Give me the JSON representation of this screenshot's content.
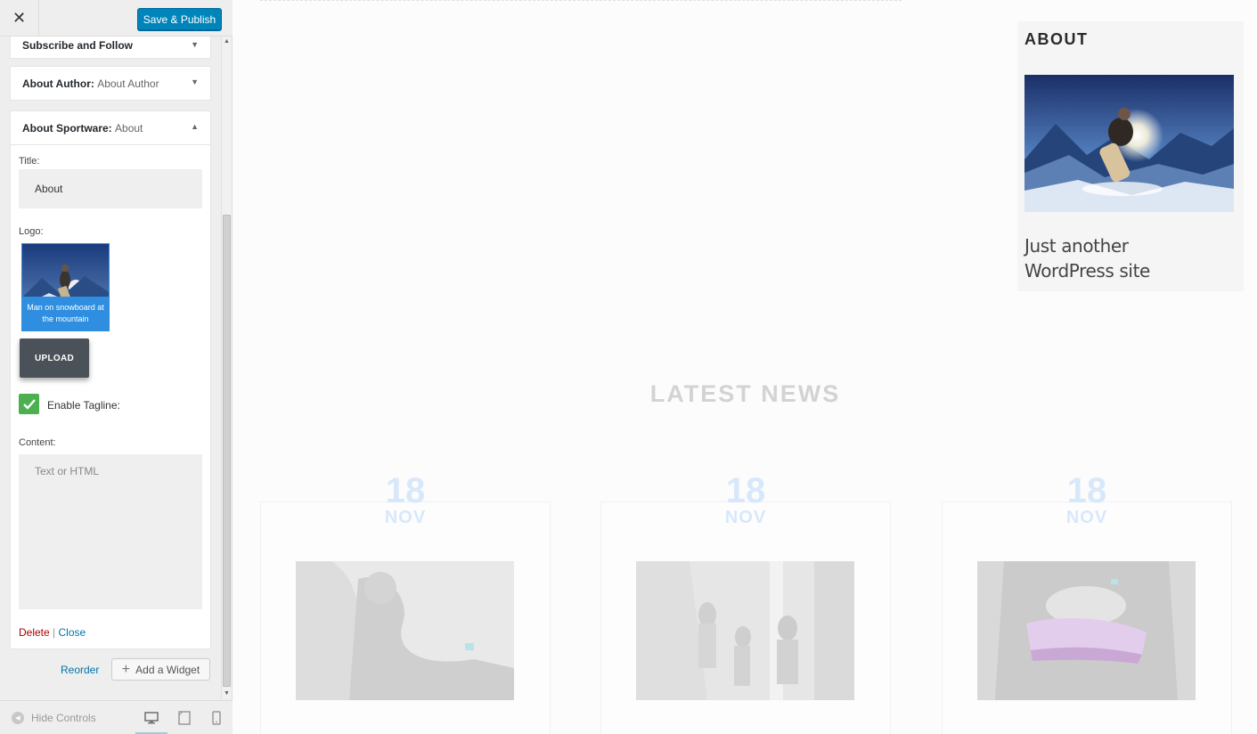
{
  "header": {
    "close_icon": "close-icon",
    "save_label": "Save & Publish",
    "save_color": "#0085ba"
  },
  "widgets": {
    "subscribe": {
      "title": "Subscribe and Follow"
    },
    "author": {
      "title": "About Author:",
      "in_title": "About Author"
    },
    "about": {
      "title": "About Sportware:",
      "in_title": "About",
      "title_label": "Title:",
      "title_value": "About",
      "logo_label": "Logo:",
      "logo_caption": "Man on snowboard at the mountain",
      "upload_label": "UPLOAD",
      "tagline_label": "Enable Tagline:",
      "tagline_checked": true,
      "content_label": "Content:",
      "content_placeholder": "Text or HTML",
      "delete_label": "Delete",
      "separator": "|",
      "close_label": "Close"
    }
  },
  "actions": {
    "reorder_label": "Reorder",
    "add_widget_label": "Add a Widget"
  },
  "footer": {
    "hide_controls_label": "Hide Controls",
    "devices": [
      "desktop-icon",
      "tablet-icon",
      "mobile-icon"
    ]
  },
  "preview": {
    "about_title": "ABOUT",
    "about_tagline": "Just another WordPress site",
    "latest_news": "LATEST NEWS",
    "cards": [
      {
        "day": "18",
        "month": "NOV"
      },
      {
        "day": "18",
        "month": "NOV"
      },
      {
        "day": "18",
        "month": "NOV"
      }
    ]
  }
}
